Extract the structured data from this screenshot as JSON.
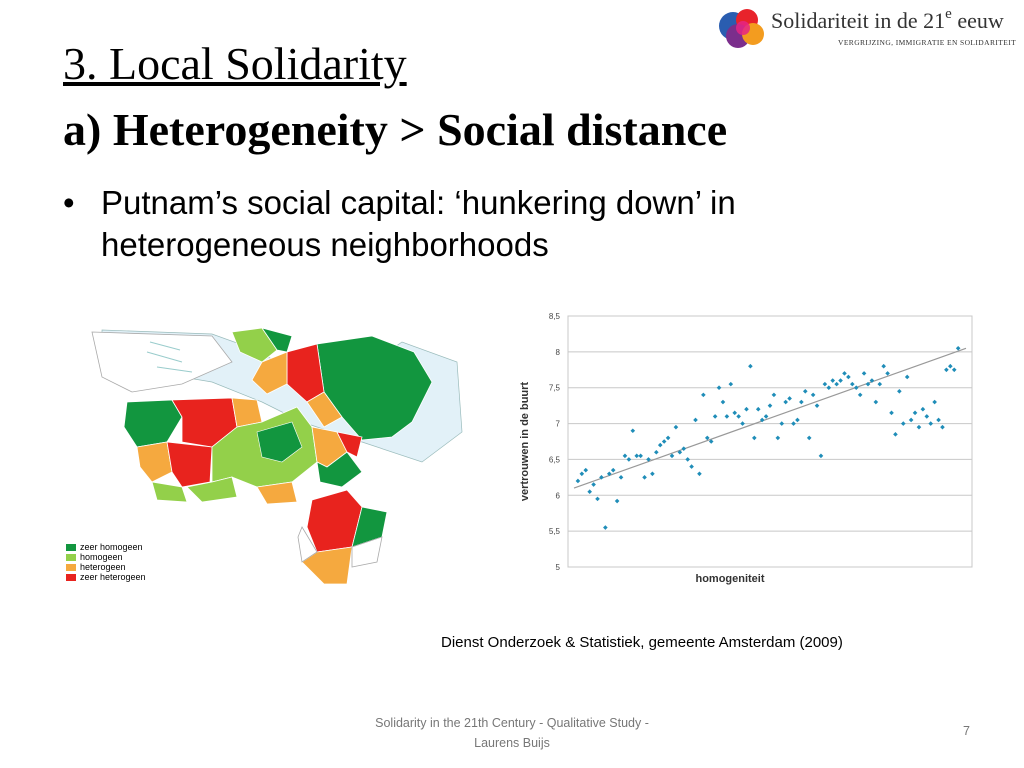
{
  "slide": {
    "title": "3. Local Solidarity",
    "subtitle": "a) Heterogeneity > Social distance",
    "bullet_text": "Putnam’s social capital: ‘hunkering down’ in heterogeneous neighborhoods",
    "bullet_symbol": "•"
  },
  "logo": {
    "name": "Solidariteit in de 21",
    "sup": "e",
    "name_end": " eeuw",
    "tagline": "VERGRIJZING, IMMIGRATIE EN SOLIDARITEIT"
  },
  "map": {
    "legend": [
      {
        "label": "zeer homogeen",
        "color": "#12963f"
      },
      {
        "label": "homogeen",
        "color": "#93d04a"
      },
      {
        "label": "heterogeen",
        "color": "#f5a93f"
      },
      {
        "label": "zeer heterogeen",
        "color": "#e8231e"
      }
    ]
  },
  "chart_data": {
    "type": "scatter",
    "xlabel": "homogeniteit",
    "ylabel": "vertrouwen in de buurt",
    "ylim": [
      5,
      8.5
    ],
    "yticks": [
      "5",
      "5,5",
      "6",
      "6,5",
      "7",
      "7,5",
      "8",
      "8,5"
    ],
    "grid": true,
    "point_color": "#1f8db8",
    "trendline": {
      "x": [
        0.0,
        1.0
      ],
      "y": [
        6.1,
        8.05
      ]
    },
    "x": [
      0.01,
      0.02,
      0.03,
      0.04,
      0.05,
      0.06,
      0.07,
      0.08,
      0.09,
      0.1,
      0.11,
      0.12,
      0.13,
      0.14,
      0.15,
      0.16,
      0.17,
      0.18,
      0.19,
      0.2,
      0.21,
      0.22,
      0.23,
      0.24,
      0.25,
      0.26,
      0.27,
      0.28,
      0.29,
      0.3,
      0.31,
      0.32,
      0.33,
      0.34,
      0.35,
      0.36,
      0.37,
      0.38,
      0.39,
      0.4,
      0.41,
      0.42,
      0.43,
      0.44,
      0.45,
      0.46,
      0.47,
      0.48,
      0.49,
      0.5,
      0.51,
      0.52,
      0.53,
      0.54,
      0.55,
      0.56,
      0.57,
      0.58,
      0.59,
      0.6,
      0.61,
      0.62,
      0.63,
      0.64,
      0.65,
      0.66,
      0.67,
      0.68,
      0.69,
      0.7,
      0.71,
      0.72,
      0.73,
      0.74,
      0.75,
      0.76,
      0.77,
      0.78,
      0.79,
      0.8,
      0.81,
      0.82,
      0.83,
      0.84,
      0.85,
      0.86,
      0.87,
      0.88,
      0.89,
      0.9,
      0.91,
      0.92,
      0.93,
      0.94,
      0.95,
      0.96,
      0.97,
      0.98
    ],
    "y": [
      6.2,
      6.3,
      6.35,
      6.05,
      6.15,
      5.95,
      6.25,
      5.55,
      6.3,
      6.35,
      5.92,
      6.25,
      6.55,
      6.5,
      6.9,
      6.55,
      6.55,
      6.25,
      6.5,
      6.3,
      6.6,
      6.7,
      6.75,
      6.8,
      6.55,
      6.95,
      6.6,
      6.65,
      6.5,
      6.4,
      7.05,
      6.3,
      7.4,
      6.8,
      6.75,
      7.1,
      7.5,
      7.3,
      7.1,
      7.55,
      7.15,
      7.1,
      7.0,
      7.2,
      7.8,
      6.8,
      7.2,
      7.05,
      7.1,
      7.25,
      7.4,
      6.8,
      7.0,
      7.3,
      7.35,
      7.0,
      7.05,
      7.3,
      7.45,
      6.8,
      7.4,
      7.25,
      6.55,
      7.55,
      7.5,
      7.6,
      7.55,
      7.6,
      7.7,
      7.65,
      7.55,
      7.5,
      7.4,
      7.7,
      7.55,
      7.6,
      7.3,
      7.55,
      7.8,
      7.7,
      7.15,
      6.85,
      7.45,
      7.0,
      7.65,
      7.05,
      7.15,
      6.95,
      7.2,
      7.1,
      7.0,
      7.3,
      7.05,
      6.95,
      7.75,
      7.8,
      7.75,
      8.05
    ]
  },
  "source": "Dienst Onderzoek & Statistiek, gemeente Amsterdam (2009)",
  "footer": {
    "text": "Solidarity in the 21th Century - Qualitative Study - Laurens Buijs",
    "page": "7"
  }
}
